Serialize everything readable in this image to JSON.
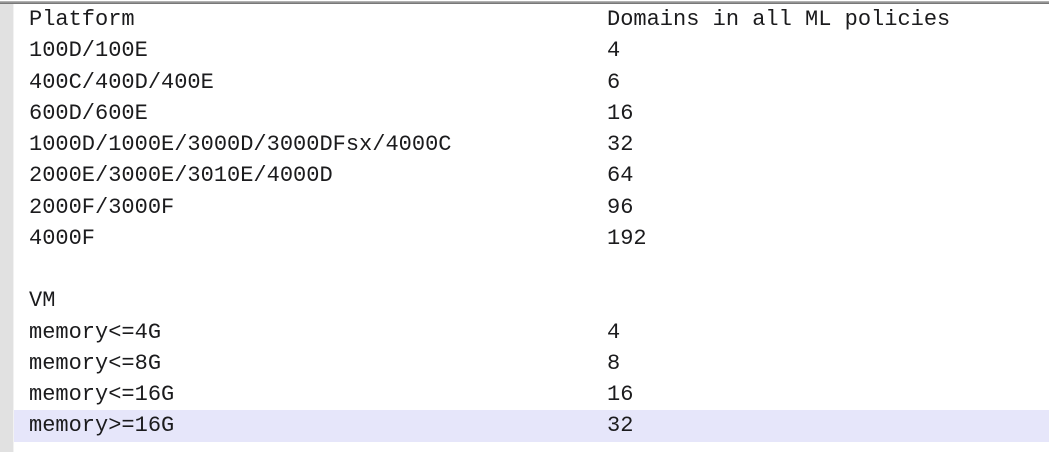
{
  "table": {
    "columns": [
      "Platform",
      "Domains in all ML policies"
    ],
    "platform_rows": [
      {
        "platform": "100D/100E",
        "domains": "4"
      },
      {
        "platform": "400C/400D/400E",
        "domains": "6"
      },
      {
        "platform": "600D/600E",
        "domains": "16"
      },
      {
        "platform": "1000D/1000E/3000D/3000DFsx/4000C",
        "domains": "32"
      },
      {
        "platform": "2000E/3000E/3010E/4000D",
        "domains": "64"
      },
      {
        "platform": "2000F/3000F",
        "domains": "96"
      },
      {
        "platform": "4000F",
        "domains": "192"
      }
    ],
    "vm_section_label": "VM",
    "vm_rows": [
      {
        "platform": "memory<=4G",
        "domains": "4",
        "highlighted": false
      },
      {
        "platform": "memory<=8G",
        "domains": "8",
        "highlighted": false
      },
      {
        "platform": "memory<=16G",
        "domains": "16",
        "highlighted": false
      },
      {
        "platform": "memory>=16G",
        "domains": "32",
        "highlighted": true
      }
    ],
    "colors": {
      "highlight_row": "#e6e6fa",
      "text": "#1b1b1d",
      "gutter": "#e1e1e1",
      "top_border": "#8f8f8f"
    }
  }
}
